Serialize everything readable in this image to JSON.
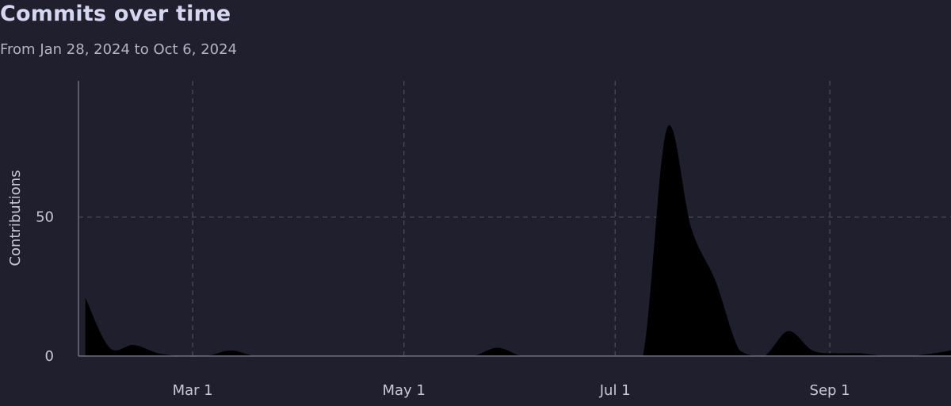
{
  "header": {
    "title": "Commits over time",
    "subtitle": "From Jan 28, 2024 to Oct 6, 2024"
  },
  "colors": {
    "background": "#1f1f2e",
    "area_fill": "#000000",
    "grid": "#4a4a5a",
    "axis": "#6e6e7e",
    "text": "#c8c8d4"
  },
  "chart_data": {
    "type": "area",
    "title": "Commits over time",
    "subtitle": "From Jan 28, 2024 to Oct 6, 2024",
    "xlabel": "",
    "ylabel": "Contributions",
    "xlim": [
      "2024-01-28",
      "2024-10-06"
    ],
    "ylim": [
      0,
      99
    ],
    "x_ticks": [
      {
        "date": "2024-03-01",
        "label": "Mar 1"
      },
      {
        "date": "2024-05-01",
        "label": "May 1"
      },
      {
        "date": "2024-07-01",
        "label": "Jul 1"
      },
      {
        "date": "2024-09-01",
        "label": "Sep 1"
      }
    ],
    "y_ticks": [
      0,
      50
    ],
    "grid": true,
    "x": [
      "2024-01-30",
      "2024-02-06",
      "2024-02-13",
      "2024-02-20",
      "2024-02-27",
      "2024-03-05",
      "2024-03-12",
      "2024-03-19",
      "2024-03-26",
      "2024-04-02",
      "2024-04-09",
      "2024-04-16",
      "2024-04-23",
      "2024-04-30",
      "2024-05-07",
      "2024-05-14",
      "2024-05-21",
      "2024-05-28",
      "2024-06-04",
      "2024-06-11",
      "2024-06-18",
      "2024-06-25",
      "2024-07-02",
      "2024-07-09",
      "2024-07-16",
      "2024-07-23",
      "2024-07-30",
      "2024-08-06",
      "2024-08-13",
      "2024-08-20",
      "2024-08-27",
      "2024-09-03",
      "2024-09-10",
      "2024-09-17",
      "2024-09-24",
      "2024-10-01",
      "2024-10-06"
    ],
    "series": [
      {
        "values": [
          21,
          3,
          4,
          1,
          0,
          0,
          2,
          0,
          0,
          0,
          0,
          0,
          0,
          0,
          0,
          0,
          0,
          3,
          0,
          0,
          0,
          0,
          0,
          0,
          82,
          46,
          27,
          2,
          0,
          9,
          2,
          1,
          1,
          0,
          0,
          1,
          2
        ]
      }
    ]
  }
}
